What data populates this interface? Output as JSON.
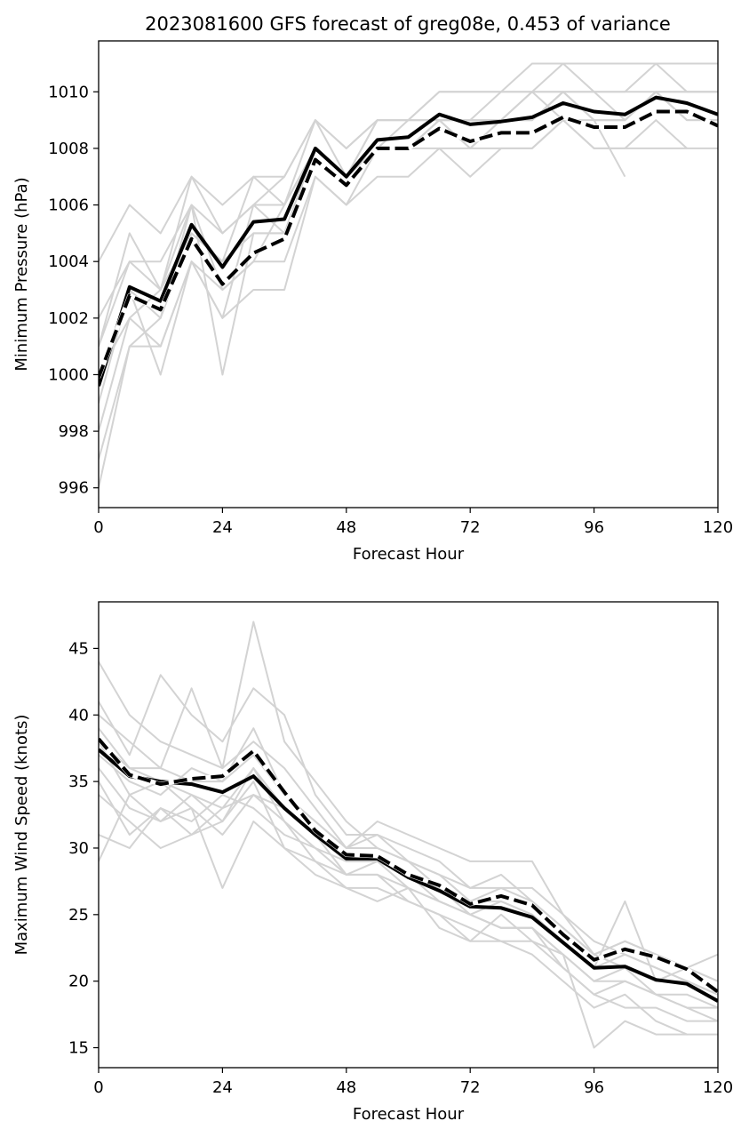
{
  "figure_title": "2023081600 GFS forecast of greg08e, 0.453 of variance",
  "colors": {
    "member": "#d3d3d3",
    "mean_solid": "#000000",
    "mean_dashed": "#000000",
    "dash_gap": "#ffffff",
    "axes": "#000000",
    "background": "#ffffff"
  },
  "chart_data": [
    {
      "type": "line",
      "xlabel": "Forecast Hour",
      "ylabel": "Minimum Pressure (hPa)",
      "xlim": [
        0,
        120
      ],
      "ylim": [
        995.3,
        1011.8
      ],
      "xticks": [
        0,
        24,
        48,
        72,
        96,
        120
      ],
      "yticks": [
        996,
        998,
        1000,
        1002,
        1004,
        1006,
        1008,
        1010
      ],
      "grid": false,
      "x": [
        0,
        6,
        12,
        18,
        24,
        30,
        36,
        42,
        48,
        54,
        60,
        66,
        72,
        78,
        84,
        90,
        96,
        102,
        108,
        114,
        120
      ],
      "series": [
        {
          "role": "mean-solid",
          "style": "solid",
          "values": [
            999.6,
            1003.1,
            1002.6,
            1005.3,
            1003.8,
            1005.4,
            1005.5,
            1008.0,
            1007.0,
            1008.3,
            1008.4,
            1009.2,
            1008.85,
            1008.95,
            1009.1,
            1009.6,
            1009.3,
            1009.2,
            1009.8,
            1009.6,
            1009.2
          ]
        },
        {
          "role": "mean-dashed",
          "style": "dashed",
          "values": [
            999.9,
            1002.8,
            1002.3,
            1004.8,
            1003.2,
            1004.3,
            1004.8,
            1007.6,
            1006.7,
            1008.0,
            1008.0,
            1008.7,
            1008.25,
            1008.55,
            1008.55,
            1009.1,
            1008.75,
            1008.75,
            1009.3,
            1009.3,
            1008.8
          ]
        }
      ],
      "members": [
        [
          1004,
          1006,
          1005,
          1007,
          1006,
          1007,
          1007,
          1009,
          1008,
          1009,
          1009,
          1010,
          1010,
          1010,
          1011,
          1011,
          1011,
          1011,
          1011,
          1011,
          1011
        ],
        [
          1002,
          1004,
          1004,
          1006,
          1005,
          1006,
          1006,
          1008,
          1007,
          1008,
          1009,
          1009,
          1009,
          1010,
          1010,
          1010,
          1010,
          1010,
          1010,
          1010,
          1010
        ],
        [
          1000,
          1003,
          1002,
          1005,
          1004,
          1005,
          1005,
          1008,
          1007,
          1008,
          1008,
          1009,
          1008,
          1009,
          1009,
          1010,
          1009,
          1009,
          1010,
          1009,
          1009
        ],
        [
          998,
          1002,
          1001,
          1004,
          1003,
          1004,
          1004,
          1007,
          1006,
          1008,
          1008,
          1008,
          1008,
          1008,
          1008,
          1009,
          1008,
          1008,
          1009,
          1008,
          1008
        ],
        [
          996,
          1001,
          1001,
          1004,
          1002,
          1003,
          1003,
          1007,
          1006,
          1007,
          1007,
          1008,
          1007,
          1008,
          1008,
          1009,
          1008,
          1008,
          1008,
          1008
        ],
        [
          1001,
          1004,
          1003,
          1006,
          1000,
          1005,
          1005,
          1008,
          1007,
          1008,
          1008,
          1009,
          1009,
          1009,
          1009,
          1010,
          1009,
          1009,
          1010,
          1009,
          1009
        ],
        [
          999,
          1003,
          1000,
          1004,
          1002,
          1006,
          1005,
          1008,
          1007,
          1009,
          1009,
          1009,
          1009,
          1009,
          1010,
          1010,
          1009,
          1007
        ],
        [
          1000,
          1002,
          1003,
          1005,
          1004,
          1007,
          1006,
          1009,
          1008,
          1009,
          1009,
          1009,
          1008,
          1009,
          1009,
          1010,
          1010,
          1009,
          1010,
          1010,
          1010
        ],
        [
          997,
          1001,
          1002,
          1006,
          1003,
          1004,
          1006,
          1008,
          1007,
          1008,
          1008,
          1009,
          1009,
          1009,
          1010,
          1009,
          1009,
          1009,
          1010,
          1009
        ],
        [
          1001,
          1005,
          1003,
          1007,
          1005,
          1006,
          1007,
          1009,
          1007,
          1009,
          1009,
          1010,
          1010,
          1010,
          1010,
          1011,
          1010,
          1010,
          1011,
          1010,
          1010
        ]
      ]
    },
    {
      "type": "line",
      "xlabel": "Forecast Hour",
      "ylabel": "Maximum Wind Speed (knots)",
      "xlim": [
        0,
        120
      ],
      "ylim": [
        13.5,
        48.5
      ],
      "xticks": [
        0,
        24,
        48,
        72,
        96,
        120
      ],
      "yticks": [
        15,
        20,
        25,
        30,
        35,
        40,
        45
      ],
      "grid": false,
      "x": [
        0,
        6,
        12,
        18,
        24,
        30,
        36,
        42,
        48,
        54,
        60,
        66,
        72,
        78,
        84,
        90,
        96,
        102,
        108,
        114,
        120
      ],
      "series": [
        {
          "role": "mean-solid",
          "style": "solid",
          "values": [
            37.4,
            35.4,
            35.0,
            34.8,
            34.2,
            35.4,
            33.0,
            31.0,
            29.2,
            29.2,
            27.8,
            26.8,
            25.6,
            25.5,
            24.8,
            22.9,
            21.0,
            21.1,
            20.1,
            19.8,
            18.5
          ]
        },
        {
          "role": "mean-dashed",
          "style": "dashed",
          "values": [
            38.2,
            35.5,
            34.8,
            35.2,
            35.4,
            37.3,
            34.2,
            31.3,
            29.5,
            29.4,
            28.0,
            27.2,
            25.8,
            26.4,
            25.7,
            23.5,
            21.6,
            22.4,
            21.8,
            20.9,
            19.2
          ]
        }
      ],
      "members": [
        [
          44,
          40,
          38,
          37,
          36,
          47,
          38,
          35,
          32,
          30,
          29,
          28,
          26,
          27,
          27,
          25,
          22,
          23,
          22,
          21,
          20
        ],
        [
          41,
          37,
          43,
          40,
          38,
          42,
          40,
          34,
          31,
          31,
          30,
          29,
          27,
          28,
          26,
          24,
          22,
          21,
          20,
          20,
          19
        ],
        [
          40,
          38,
          36,
          42,
          36,
          38,
          36,
          33,
          30,
          32,
          31,
          30,
          29,
          29,
          29,
          25,
          23,
          22,
          21,
          20,
          19
        ],
        [
          39,
          36,
          35,
          34,
          33,
          36,
          33,
          31,
          29,
          29,
          28,
          27,
          25,
          24,
          24,
          22,
          20,
          21,
          19,
          19,
          18
        ],
        [
          38,
          34,
          35,
          33,
          27,
          32,
          30,
          29,
          28,
          28,
          26,
          25,
          24,
          23,
          23,
          21,
          19,
          18,
          18,
          17,
          17
        ],
        [
          37,
          35,
          34,
          36,
          35,
          37,
          34,
          32,
          30,
          30,
          29,
          27,
          26,
          26,
          25,
          23,
          21,
          22,
          21,
          20,
          19
        ],
        [
          36,
          33,
          32,
          33,
          31,
          34,
          32,
          29,
          27,
          27,
          26,
          25,
          23,
          23,
          22,
          20,
          18,
          19,
          17,
          16,
          16
        ],
        [
          35,
          31,
          33,
          32,
          34,
          33,
          31,
          30,
          28,
          28,
          27,
          26,
          25,
          24,
          24,
          21,
          19,
          20,
          19,
          18,
          18
        ],
        [
          34,
          32,
          30,
          31,
          32,
          35,
          30,
          28,
          27,
          26,
          27,
          24,
          23,
          25,
          23,
          22,
          15,
          17,
          16,
          16
        ],
        [
          31,
          30,
          33,
          31,
          33,
          34,
          33,
          31,
          28,
          29,
          28,
          26,
          25,
          26,
          25,
          23,
          21,
          26,
          20,
          21,
          22
        ],
        [
          29,
          34,
          32,
          34,
          32,
          36,
          32,
          30,
          29,
          29,
          27,
          26,
          25,
          24,
          24,
          22,
          20,
          20,
          19,
          18,
          17
        ],
        [
          38,
          36,
          36,
          35,
          35,
          39,
          34,
          32,
          30,
          31,
          29,
          28,
          27,
          27,
          26,
          24,
          22,
          23,
          22,
          21,
          20
        ]
      ]
    }
  ]
}
